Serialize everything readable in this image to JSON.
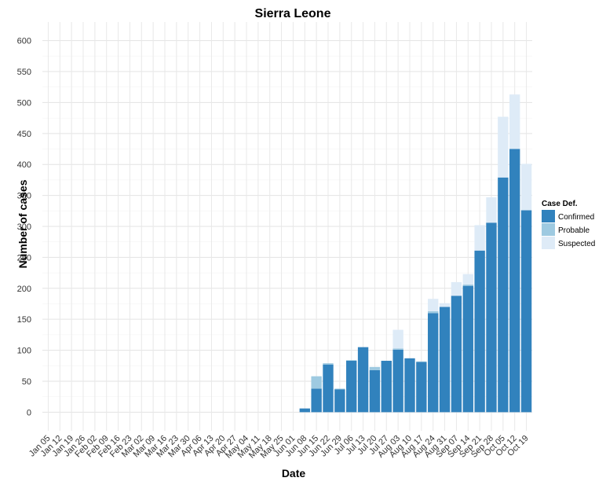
{
  "chart_data": {
    "type": "bar",
    "stacked": true,
    "title": "Sierra Leone",
    "xlabel": "Date",
    "ylabel": "Number of cases",
    "ylim": [
      -30,
      630
    ],
    "yticks": [
      0,
      50,
      100,
      150,
      200,
      250,
      300,
      350,
      400,
      450,
      500,
      550,
      600
    ],
    "grid": true,
    "legend_title": "Case Def.",
    "legend_position": "right",
    "categories": [
      "Jan 05",
      "Jan 12",
      "Jan 19",
      "Jan 26",
      "Feb 02",
      "Feb 09",
      "Feb 16",
      "Feb 23",
      "Mar 02",
      "Mar 09",
      "Mar 16",
      "Mar 23",
      "Mar 30",
      "Apr 06",
      "Apr 13",
      "Apr 20",
      "Apr 27",
      "May 04",
      "May 11",
      "May 18",
      "May 25",
      "Jun 01",
      "Jun 08",
      "Jun 15",
      "Jun 22",
      "Jun 29",
      "Jul 06",
      "Jul 13",
      "Jul 20",
      "Jul 27",
      "Aug 03",
      "Aug 10",
      "Aug 17",
      "Aug 24",
      "Aug 31",
      "Sep 07",
      "Sep 14",
      "Sep 21",
      "Sep 28",
      "Oct 05",
      "Oct 12",
      "Oct 19"
    ],
    "series": [
      {
        "name": "Confirmed",
        "color": "#3182bd",
        "values": [
          0,
          0,
          0,
          0,
          0,
          0,
          0,
          0,
          0,
          0,
          0,
          0,
          0,
          0,
          0,
          0,
          0,
          0,
          0,
          0,
          0,
          0,
          6,
          38,
          77,
          37,
          83,
          105,
          68,
          83,
          101,
          87,
          81,
          160,
          170,
          188,
          204,
          261,
          306,
          379,
          425,
          326
        ]
      },
      {
        "name": "Probable",
        "color": "#9ecae1",
        "values": [
          0,
          0,
          0,
          0,
          0,
          0,
          0,
          0,
          0,
          0,
          0,
          0,
          0,
          0,
          0,
          0,
          0,
          0,
          0,
          0,
          0,
          0,
          0,
          20,
          2,
          1,
          1,
          0,
          5,
          0,
          2,
          0,
          1,
          3,
          0,
          0,
          2,
          0,
          0,
          0,
          0,
          0
        ]
      },
      {
        "name": "Suspected",
        "color": "#deebf7",
        "values": [
          0,
          0,
          0,
          0,
          0,
          0,
          0,
          0,
          0,
          0,
          0,
          0,
          0,
          0,
          0,
          0,
          0,
          0,
          0,
          0,
          0,
          0,
          0,
          0,
          0,
          0,
          0,
          0,
          0,
          0,
          30,
          0,
          0,
          20,
          6,
          22,
          17,
          41,
          41,
          98,
          88,
          75
        ]
      }
    ]
  }
}
